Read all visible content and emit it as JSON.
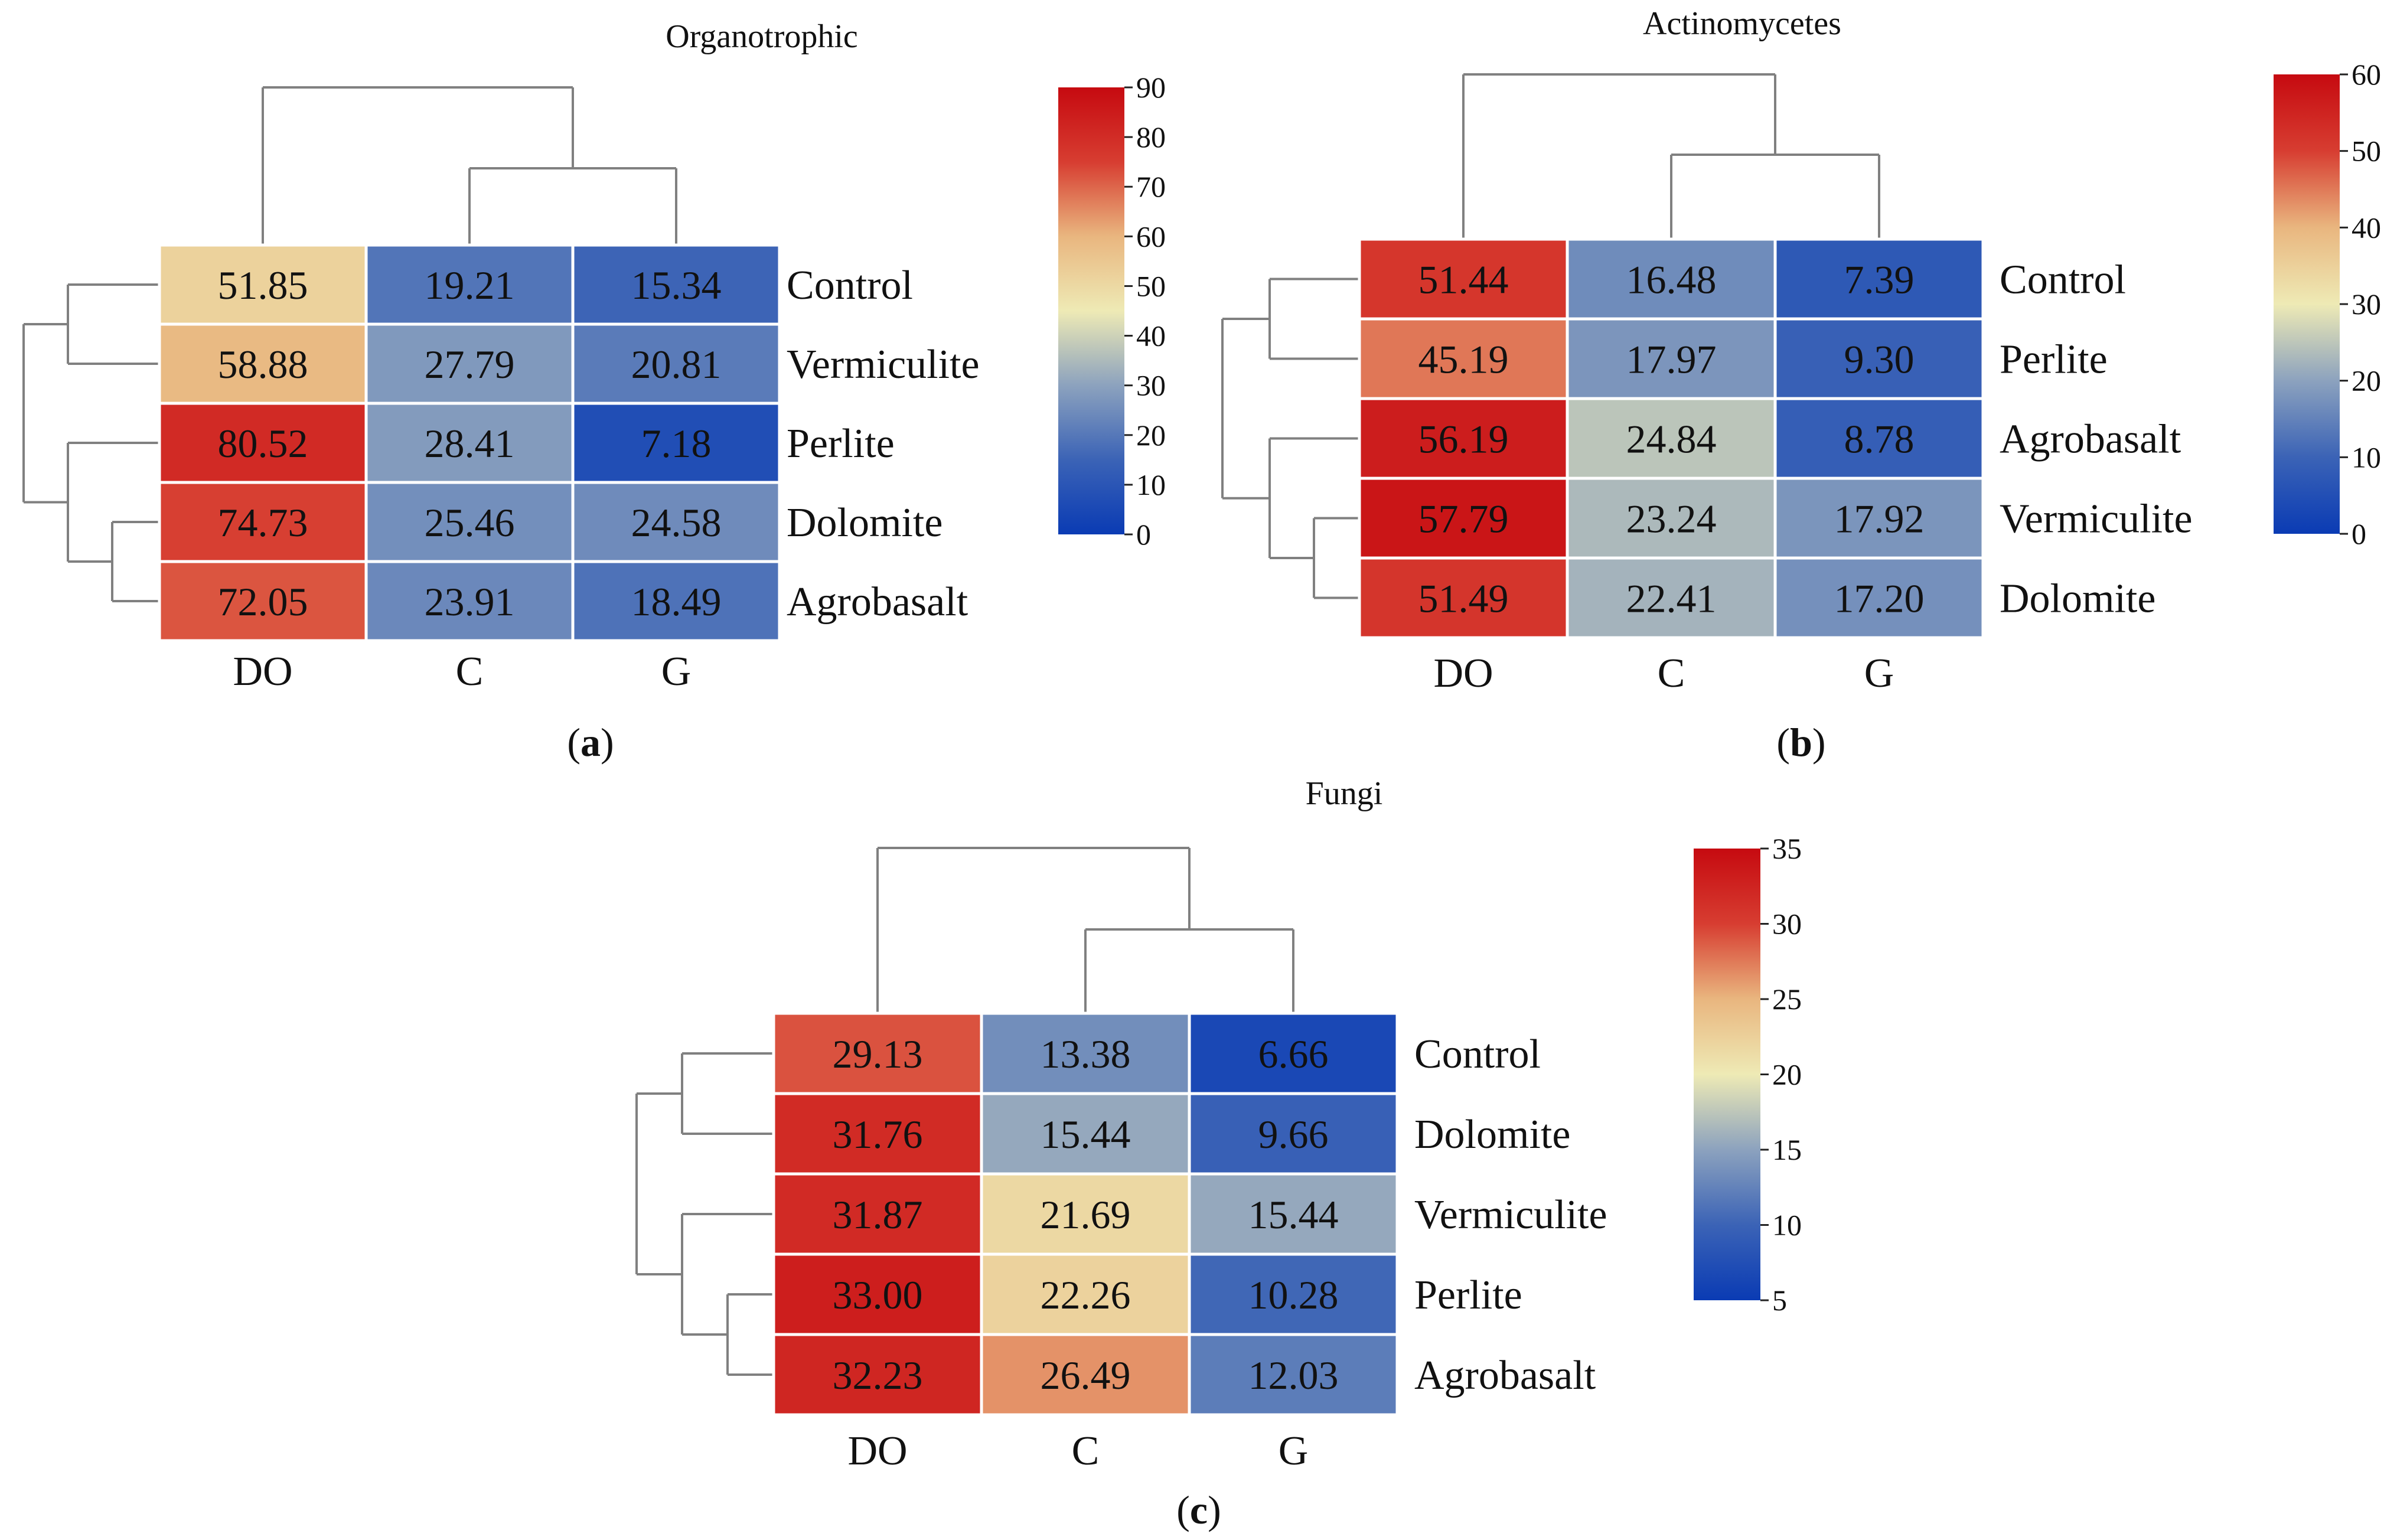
{
  "chart_data": [
    {
      "type": "heatmap",
      "title": "Organotrophic",
      "panel_label": "a",
      "columns": [
        "DO",
        "C",
        "G"
      ],
      "rows": [
        "Control",
        "Vermiculite",
        "Perlite",
        "Dolomite",
        "Agrobasalt"
      ],
      "values": [
        [
          51.85,
          19.21,
          15.34
        ],
        [
          58.88,
          27.79,
          20.81
        ],
        [
          80.52,
          28.41,
          7.18
        ],
        [
          74.73,
          25.46,
          24.58
        ],
        [
          72.05,
          23.91,
          18.49
        ]
      ],
      "value_labels": [
        [
          "51.85",
          "19.21",
          "15.34"
        ],
        [
          "58.88",
          "27.79",
          "20.81"
        ],
        [
          "80.52",
          "28.41",
          "7.18"
        ],
        [
          "74.73",
          "25.46",
          "24.58"
        ],
        [
          "72.05",
          "23.91",
          "18.49"
        ]
      ],
      "colorbar": {
        "min": 0,
        "max": 90,
        "ticks": [
          "0",
          "10",
          "20",
          "30",
          "40",
          "50",
          "60",
          "70",
          "80",
          "90"
        ]
      },
      "col_dendrogram": "DO | (C, G)",
      "row_dendrogram": "((Control, Vermiculite), (Perlite, (Dolomite, Agrobasalt)))"
    },
    {
      "type": "heatmap",
      "title": "Actinomycetes",
      "panel_label": "b",
      "columns": [
        "DO",
        "C",
        "G"
      ],
      "rows": [
        "Control",
        "Perlite",
        "Agrobasalt",
        "Vermiculite",
        "Dolomite"
      ],
      "values": [
        [
          51.44,
          16.48,
          7.39
        ],
        [
          45.19,
          17.97,
          9.3
        ],
        [
          56.19,
          24.84,
          8.78
        ],
        [
          57.79,
          23.24,
          17.92
        ],
        [
          51.49,
          22.41,
          17.2
        ]
      ],
      "value_labels": [
        [
          "51.44",
          "16.48",
          "7.39"
        ],
        [
          "45.19",
          "17.97",
          "9.30"
        ],
        [
          "56.19",
          "24.84",
          "8.78"
        ],
        [
          "57.79",
          "23.24",
          "17.92"
        ],
        [
          "51.49",
          "22.41",
          "17.20"
        ]
      ],
      "colorbar": {
        "min": 0,
        "max": 60,
        "ticks": [
          "0",
          "10",
          "20",
          "30",
          "40",
          "50",
          "60"
        ]
      },
      "col_dendrogram": "DO | (C, G)",
      "row_dendrogram": "((Control, Perlite), (Agrobasalt, (Vermiculite, Dolomite)))"
    },
    {
      "type": "heatmap",
      "title": "Fungi",
      "panel_label": "c",
      "columns": [
        "DO",
        "C",
        "G"
      ],
      "rows": [
        "Control",
        "Dolomite",
        "Vermiculite",
        "Perlite",
        "Agrobasalt"
      ],
      "values": [
        [
          29.13,
          13.38,
          6.66
        ],
        [
          31.76,
          15.44,
          9.66
        ],
        [
          31.87,
          21.69,
          15.44
        ],
        [
          33.0,
          22.26,
          10.28
        ],
        [
          32.23,
          26.49,
          12.03
        ]
      ],
      "value_labels": [
        [
          "29.13",
          "13.38",
          "6.66"
        ],
        [
          "31.76",
          "15.44",
          "9.66"
        ],
        [
          "31.87",
          "21.69",
          "15.44"
        ],
        [
          "33.00",
          "22.26",
          "10.28"
        ],
        [
          "32.23",
          "26.49",
          "12.03"
        ]
      ],
      "colorbar": {
        "min": 5,
        "max": 35,
        "ticks": [
          "5",
          "10",
          "15",
          "20",
          "25",
          "30",
          "35"
        ]
      },
      "col_dendrogram": "DO | (C, G)",
      "row_dendrogram": "((Control, Dolomite), (Vermiculite, (Perlite, Agrobasalt)))"
    }
  ],
  "colormap": {
    "name": "RdYlBu-like diverging",
    "stops": [
      "#0a3bb4",
      "#3b63b6",
      "#8ca2be",
      "#eeeab5",
      "#e9b67f",
      "#d73d31",
      "#c60a10"
    ]
  }
}
